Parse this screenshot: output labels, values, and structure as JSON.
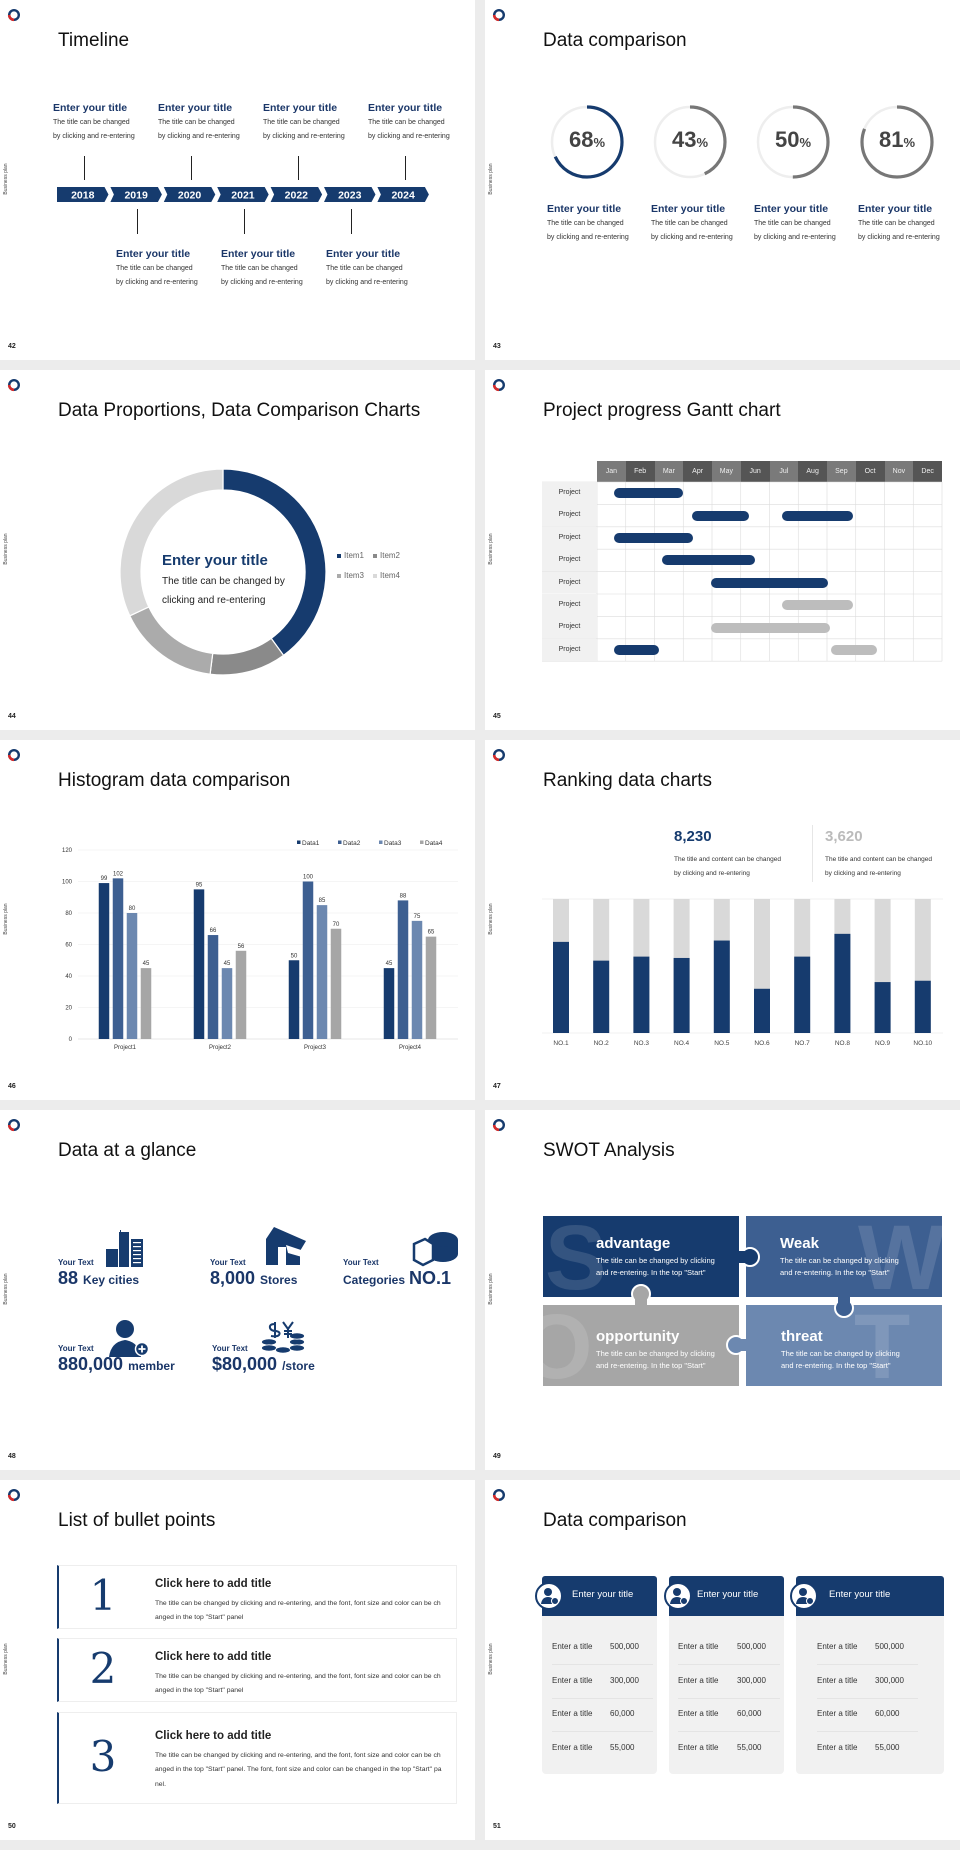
{
  "deck": {
    "side_label": "Business plan"
  },
  "colors": {
    "navy": "#163b6e",
    "blue2": "#3d5f91",
    "blue3": "#6c88b0",
    "gray": "#a6a6a6",
    "light_gray": "#d9d9d9",
    "logo_red": "#d42a2a"
  },
  "slides": {
    "s42": {
      "page": "42",
      "title": "Timeline",
      "years": [
        "2018",
        "2019",
        "2020",
        "2021",
        "2022",
        "2023",
        "2024"
      ],
      "top_items": [
        {
          "title": "Enter your title",
          "desc1": "The title can be changed",
          "desc2": "by clicking and re-entering"
        },
        {
          "title": "Enter your title",
          "desc1": "The title can be changed",
          "desc2": "by clicking and re-entering"
        },
        {
          "title": "Enter your title",
          "desc1": "The title can be changed",
          "desc2": "by clicking and re-entering"
        },
        {
          "title": "Enter your title",
          "desc1": "The title can be changed",
          "desc2": "by clicking and re-entering"
        }
      ],
      "bottom_items": [
        {
          "title": "Enter your title",
          "desc1": "The title can be changed",
          "desc2": "by clicking and re-entering"
        },
        {
          "title": "Enter your title",
          "desc1": "The title can be changed",
          "desc2": "by clicking and re-entering"
        },
        {
          "title": "Enter your title",
          "desc1": "The title can be changed",
          "desc2": "by clicking and re-entering"
        }
      ]
    },
    "s43": {
      "page": "43",
      "title": "Data comparison",
      "items": [
        {
          "percent": 68,
          "unit": "%",
          "color": "#163b6e",
          "title": "Enter your title",
          "desc1": "The title can be changed",
          "desc2": "by clicking and re-entering"
        },
        {
          "percent": 43,
          "unit": "%",
          "color": "#777777",
          "title": "Enter your title",
          "desc1": "The title can be changed",
          "desc2": "by clicking and re-entering"
        },
        {
          "percent": 50,
          "unit": "%",
          "color": "#777777",
          "title": "Enter your title",
          "desc1": "The title can be changed",
          "desc2": "by clicking and re-entering"
        },
        {
          "percent": 81,
          "unit": "%",
          "color": "#777777",
          "title": "Enter your title",
          "desc1": "The title can be changed",
          "desc2": "by clicking and re-entering"
        }
      ]
    },
    "s44": {
      "page": "44",
      "title": "Data Proportions, Data Comparison Charts",
      "center_title": "Enter your title",
      "center_desc1": "The title can be changed by",
      "center_desc2": "clicking and re-entering"
    },
    "s45": {
      "page": "45",
      "title": "Project progress Gantt chart"
    },
    "s46": {
      "page": "46",
      "title": "Histogram data comparison"
    },
    "s47": {
      "page": "47",
      "title": "Ranking data charts",
      "stats": [
        {
          "value": "8,230",
          "desc1": "The title and content can be changed",
          "desc2": "by clicking and re-entering"
        },
        {
          "value": "3,620",
          "desc1": "The title and content can be changed",
          "desc2": "by clicking and re-entering"
        }
      ]
    },
    "s48": {
      "page": "48",
      "title": "Data at a glance",
      "items": [
        {
          "label": "Your Text",
          "number": "88",
          "suffix": "Key cities",
          "icon": "buildings-icon"
        },
        {
          "label": "Your Text",
          "number": "8,000",
          "suffix": "Stores",
          "icon": "store-icon"
        },
        {
          "label": "Your Text",
          "prefix": "Categories",
          "number": "NO.1",
          "icon": "category-pie-icon"
        },
        {
          "label": "Your Text",
          "number": "880,000",
          "suffix": "member",
          "icon": "add-member-icon"
        },
        {
          "label": "Your Text",
          "number": "$80,000",
          "suffix": "/store",
          "icon": "coins-icon"
        }
      ]
    },
    "s49": {
      "page": "49",
      "title": "SWOT Analysis",
      "quadrants": [
        {
          "letter": "S",
          "title": "advantage",
          "desc1": "The title can be changed by clicking",
          "desc2": "and re-entering. In the top \"Start\"",
          "color": "#163b6e"
        },
        {
          "letter": "W",
          "title": "Weak",
          "desc1": "The title can be changed by clicking",
          "desc2": "and re-entering. In the top \"Start\"",
          "color": "#3d5f91"
        },
        {
          "letter": "O",
          "title": "opportunity",
          "desc1": "The title can be changed by clicking",
          "desc2": "and re-entering. In the top \"Start\"",
          "color": "#a6a6a6"
        },
        {
          "letter": "T",
          "title": "threat",
          "desc1": "The title can be changed by clicking",
          "desc2": "and re-entering. In the top \"Start\"",
          "color": "#6c88b0"
        }
      ]
    },
    "s50": {
      "page": "50",
      "title": "List of bullet points",
      "items": [
        {
          "number": "1",
          "title": "Click here to add title",
          "desc": "The title can be changed by clicking and re-entering, and the font, font size and color can be changed in the top \"Start\" panel"
        },
        {
          "number": "2",
          "title": "Click here to add title",
          "desc": "The title can be changed by clicking and re-entering, and the font, font size and color can be changed in the top \"Start\" panel"
        },
        {
          "number": "3",
          "title": "Click here to add title",
          "desc": "The title can be changed by clicking and re-entering, and the font, font size and color can be changed in the top \"Start\" panel. The font, font size and color can be changed in the top \"Start\" panel."
        }
      ]
    },
    "s51": {
      "page": "51",
      "title": "Data comparison",
      "cards": [
        {
          "title": "Enter your title",
          "icon": "id-card-add-icon",
          "rows": [
            {
              "label": "Enter a title",
              "value": "500,000"
            },
            {
              "label": "Enter a title",
              "value": "300,000"
            },
            {
              "label": "Enter a title",
              "value": "60,000"
            },
            {
              "label": "Enter a title",
              "value": "55,000"
            }
          ]
        },
        {
          "title": "Enter your title",
          "icon": "user-add-icon",
          "rows": [
            {
              "label": "Enter a title",
              "value": "500,000"
            },
            {
              "label": "Enter a title",
              "value": "300,000"
            },
            {
              "label": "Enter a title",
              "value": "60,000"
            },
            {
              "label": "Enter a title",
              "value": "55,000"
            }
          ]
        },
        {
          "title": "Enter your title",
          "icon": "user-group-icon",
          "rows": [
            {
              "label": "Enter a title",
              "value": "500,000"
            },
            {
              "label": "Enter a title",
              "value": "300,000"
            },
            {
              "label": "Enter a title",
              "value": "60,000"
            },
            {
              "label": "Enter a title",
              "value": "55,000"
            }
          ]
        }
      ]
    }
  },
  "chart_data": [
    {
      "type": "pie",
      "variant": "donut",
      "categories": [
        "Item1",
        "Item2",
        "Item3",
        "Item4"
      ],
      "values": [
        40,
        12,
        16,
        32
      ],
      "colors": [
        "#163b6e",
        "#8a8a8a",
        "#ababab",
        "#d9d9d9"
      ],
      "legend": "right"
    },
    {
      "type": "radial-progress",
      "values": [
        68,
        43,
        50,
        81
      ],
      "max": 100
    },
    {
      "type": "gantt",
      "categories": [
        "Jan",
        "Feb",
        "Mar",
        "Apr",
        "May",
        "Jun",
        "Jul",
        "Aug",
        "Sep",
        "Oct",
        "Nov",
        "Dec"
      ],
      "rows": [
        {
          "label": "Project",
          "bars": [
            {
              "start": 1.6,
              "end": 4.0,
              "status": "active"
            }
          ]
        },
        {
          "label": "Project",
          "bars": [
            {
              "start": 4.3,
              "end": 6.3,
              "status": "active"
            },
            {
              "start": 7.45,
              "end": 9.9,
              "status": "active"
            }
          ]
        },
        {
          "label": "Project",
          "bars": [
            {
              "start": 1.6,
              "end": 4.35,
              "status": "active"
            }
          ]
        },
        {
          "label": "Project",
          "bars": [
            {
              "start": 3.25,
              "end": 6.5,
              "status": "active"
            }
          ]
        },
        {
          "label": "Project",
          "bars": [
            {
              "start": 4.95,
              "end": 9.05,
              "status": "active"
            }
          ]
        },
        {
          "label": "Project",
          "bars": [
            {
              "start": 7.45,
              "end": 9.9,
              "status": "planned"
            }
          ]
        },
        {
          "label": "Project",
          "bars": [
            {
              "start": 4.95,
              "end": 9.1,
              "status": "planned"
            }
          ]
        },
        {
          "label": "Project",
          "bars": [
            {
              "start": 1.6,
              "end": 3.15,
              "status": "active"
            },
            {
              "start": 9.15,
              "end": 10.75,
              "status": "planned"
            }
          ]
        }
      ],
      "status_colors": {
        "active": "#163b6e",
        "planned": "#bdbdbd"
      }
    },
    {
      "type": "bar",
      "categories": [
        "Project1",
        "Project2",
        "Project3",
        "Project4"
      ],
      "series": [
        {
          "name": "Data1",
          "values": [
            99,
            95,
            50,
            45
          ],
          "color": "#163b6e"
        },
        {
          "name": "Data2",
          "values": [
            102,
            66,
            100,
            88
          ],
          "color": "#3d5f91"
        },
        {
          "name": "Data3",
          "values": [
            80,
            45,
            85,
            75
          ],
          "color": "#6c88b0"
        },
        {
          "name": "Data4",
          "values": [
            45,
            56,
            70,
            65
          ],
          "color": "#a6a6a6"
        }
      ],
      "ylim": [
        0,
        120
      ],
      "yticks": [
        "0",
        "20",
        "40",
        "60",
        "80",
        "100",
        "120"
      ],
      "grid": true,
      "legend": "top-right",
      "data_labels": true
    },
    {
      "type": "bar",
      "variant": "progress-columns",
      "categories": [
        "NO.1",
        "NO.2",
        "NO.3",
        "NO.4",
        "NO.5",
        "NO.6",
        "NO.7",
        "NO.8",
        "NO.9",
        "NO.10"
      ],
      "values": [
        68,
        54,
        57,
        56,
        69,
        33,
        57,
        74,
        38,
        39
      ],
      "ylim": [
        0,
        100
      ],
      "fill_color": "#163b6e",
      "track_color": "#d9d9d9"
    }
  ]
}
